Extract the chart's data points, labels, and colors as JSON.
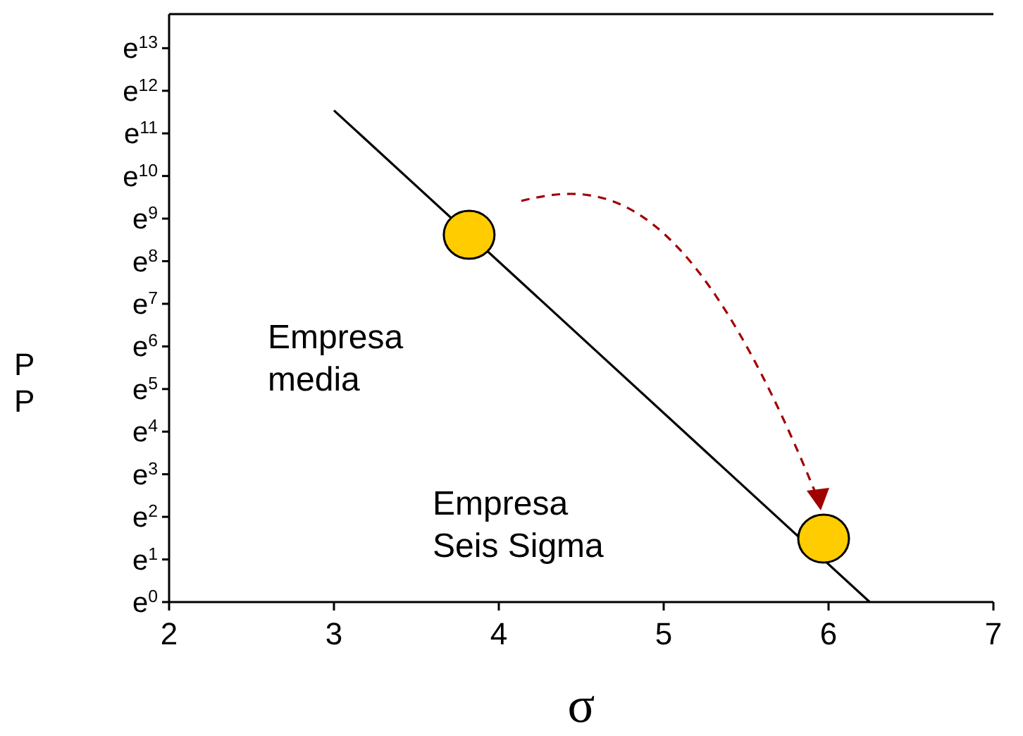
{
  "chart_data": {
    "type": "line",
    "xlabel": "σ",
    "ylabel": "P\nP",
    "xlim": [
      2,
      7
    ],
    "xticks": [
      2,
      3,
      4,
      5,
      6,
      7
    ],
    "ylim": [
      0,
      13.8
    ],
    "yticks": [
      {
        "value": 0,
        "label": "e$^{0}$"
      },
      {
        "value": 1,
        "label": "e$^{1}$"
      },
      {
        "value": 2,
        "label": "e$^{2}$"
      },
      {
        "value": 3,
        "label": "e$^{3}$"
      },
      {
        "value": 4,
        "label": "e$^{4}$"
      },
      {
        "value": 5,
        "label": "e$^{5}$"
      },
      {
        "value": 6,
        "label": "e$^{6}$"
      },
      {
        "value": 7,
        "label": "e$^{7}$"
      },
      {
        "value": 8,
        "label": "e$^{8}$"
      },
      {
        "value": 9,
        "label": "e$^{9}$"
      },
      {
        "value": 10,
        "label": "e$^{10}$"
      },
      {
        "value": 11,
        "label": "e$^{11}$"
      },
      {
        "value": 12,
        "label": "e$^{12}$"
      },
      {
        "value": 13,
        "label": "e$^{13}$"
      }
    ],
    "grid": false,
    "series": [
      {
        "color": "#000000",
        "x": [
          3,
          6.25
        ],
        "values": [
          11.54,
          0
        ],
        "line_style": "solid"
      },
      {
        "type": "scatter",
        "color": "#ffcc00",
        "x": [
          3.82,
          5.97
        ],
        "values": [
          8.62,
          1.49
        ],
        "marker": "circle"
      }
    ],
    "annotations": [
      "Empresa\nmedia",
      "Empresa\nSeis Sigma"
    ]
  }
}
